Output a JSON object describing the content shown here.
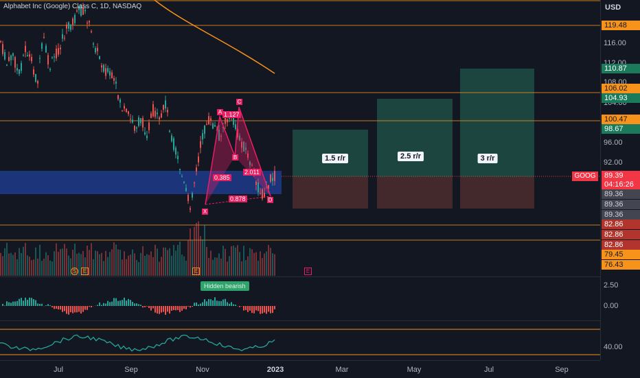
{
  "chart": {
    "title": "Alphabet Inc (Google) Class C, 1D, NASDAQ",
    "currency": "USD",
    "ticker_tag": "GOOG",
    "last_price": "89.39",
    "countdown": "04:16:26",
    "colors": {
      "background": "#131722",
      "up": "#26a69a",
      "down": "#ef5350",
      "level_line": "#f7931a",
      "zone": "#1e3a8a",
      "pattern": "#e91e63"
    }
  },
  "price_axis": {
    "ticks": [
      "116.00",
      "112.00",
      "108.00",
      "104.00",
      "96.00",
      "92.00"
    ],
    "badges": [
      {
        "text": "119.48",
        "color": "#f7931a",
        "text_color": "#131722"
      },
      {
        "text": "110.87",
        "color": "#1b7a5a",
        "text_color": "#ffffff"
      },
      {
        "text": "106.02",
        "color": "#f7931a",
        "text_color": "#131722"
      },
      {
        "text": "104.93",
        "color": "#1b7a5a",
        "text_color": "#ffffff"
      },
      {
        "text": "100.47",
        "color": "#f7931a",
        "text_color": "#131722"
      },
      {
        "text": "98.67",
        "color": "#1b7a5a",
        "text_color": "#ffffff"
      },
      {
        "text": "89.39",
        "color": "#f23645",
        "text_color": "#ffffff"
      },
      {
        "text": "04:16:26",
        "color": "#f23645",
        "text_color": "#ffffff"
      },
      {
        "text": "89.36",
        "color": "#434651",
        "text_color": "#d1d4dc"
      },
      {
        "text": "89.36",
        "color": "#434651",
        "text_color": "#d1d4dc"
      },
      {
        "text": "89.36",
        "color": "#434651",
        "text_color": "#d1d4dc"
      },
      {
        "text": "82.86",
        "color": "#b2352d",
        "text_color": "#ffffff"
      },
      {
        "text": "82.86",
        "color": "#b2352d",
        "text_color": "#ffffff"
      },
      {
        "text": "82.86",
        "color": "#b2352d",
        "text_color": "#ffffff"
      },
      {
        "text": "79.45",
        "color": "#f7931a",
        "text_color": "#131722"
      },
      {
        "text": "76.43",
        "color": "#f7931a",
        "text_color": "#131722"
      }
    ]
  },
  "time_axis": {
    "labels": [
      "Jul",
      "Sep",
      "Nov",
      "2023",
      "Mar",
      "May",
      "Jul",
      "Sep"
    ]
  },
  "pattern": {
    "points": [
      "X",
      "A",
      "B",
      "C",
      "D"
    ],
    "ratios": [
      "1.127",
      "0.385",
      "2.011",
      "0.878"
    ]
  },
  "risk_reward": {
    "labels": [
      "1.5 r/r",
      "2.5 r/r",
      "3 r/r"
    ]
  },
  "events": {
    "markers": [
      "S",
      "E",
      "E",
      "E"
    ]
  },
  "macd": {
    "ticks": [
      "2.50",
      "0.00"
    ],
    "annotation": "Hidden bearish"
  },
  "rsi": {
    "ticks": [
      "40.00"
    ]
  }
}
